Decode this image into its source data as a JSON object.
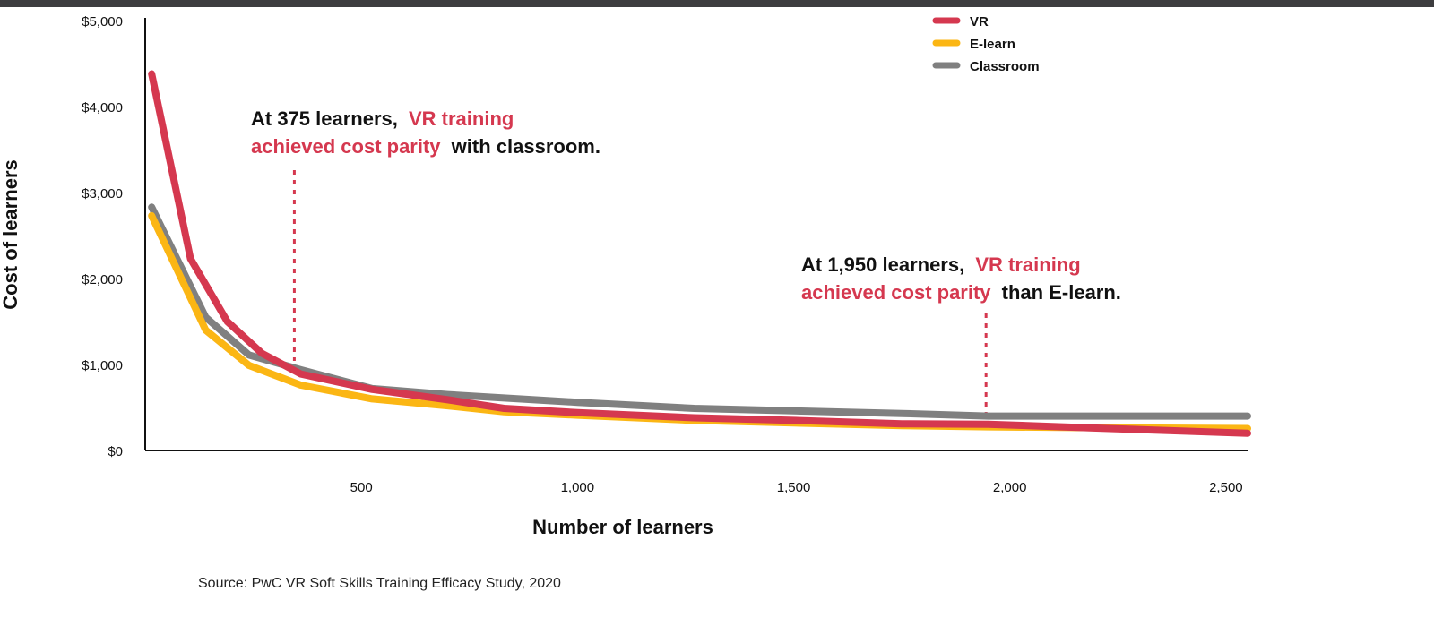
{
  "chart_data": {
    "type": "line",
    "title": "",
    "xlabel": "Number of learners",
    "ylabel": "Cost of learners",
    "xlim": [
      0,
      2550
    ],
    "ylim": [
      0,
      5000
    ],
    "x_ticks": [
      500,
      1000,
      1500,
      2000,
      2500
    ],
    "x_tick_labels": [
      "500",
      "1,000",
      "1,500",
      "2,000",
      "2,500"
    ],
    "y_ticks": [
      0,
      1000,
      2000,
      3000,
      4000,
      5000
    ],
    "y_tick_labels": [
      "$0",
      "$1,000",
      "$2,000",
      "$3,000",
      "$4,000",
      "$5,000"
    ],
    "legend": {
      "position": "top-right"
    },
    "series": [
      {
        "name": "VR",
        "color": "#d5384f",
        "points": [
          [
            15,
            4380
          ],
          [
            105,
            2230
          ],
          [
            190,
            1500
          ],
          [
            270,
            1130
          ],
          [
            360,
            890
          ],
          [
            525,
            710
          ],
          [
            700,
            590
          ],
          [
            830,
            490
          ],
          [
            1000,
            440
          ],
          [
            1270,
            380
          ],
          [
            1500,
            350
          ],
          [
            1750,
            310
          ],
          [
            1950,
            305
          ],
          [
            2200,
            260
          ],
          [
            2550,
            200
          ]
        ]
      },
      {
        "name": "E-learn",
        "color": "#fbb614",
        "points": [
          [
            15,
            2730
          ],
          [
            140,
            1400
          ],
          [
            240,
            990
          ],
          [
            360,
            760
          ],
          [
            525,
            600
          ],
          [
            700,
            520
          ],
          [
            830,
            450
          ],
          [
            1000,
            410
          ],
          [
            1270,
            350
          ],
          [
            1500,
            320
          ],
          [
            1750,
            290
          ],
          [
            1950,
            275
          ],
          [
            2200,
            265
          ],
          [
            2550,
            255
          ]
        ]
      },
      {
        "name": "Classroom",
        "color": "#808080",
        "points": [
          [
            15,
            2830
          ],
          [
            140,
            1550
          ],
          [
            240,
            1110
          ],
          [
            360,
            940
          ],
          [
            525,
            720
          ],
          [
            700,
            650
          ],
          [
            830,
            610
          ],
          [
            1000,
            560
          ],
          [
            1270,
            490
          ],
          [
            1500,
            460
          ],
          [
            1750,
            430
          ],
          [
            1950,
            400
          ],
          [
            2200,
            400
          ],
          [
            2550,
            400
          ]
        ]
      }
    ],
    "annotations": [
      {
        "x": 345,
        "line1_dark": "At 375 learners,",
        "line1_highlight": "VR training",
        "line2_highlight": "achieved cost parity",
        "line2_dark": "with classroom."
      },
      {
        "x": 1945,
        "line1_dark": "At 1,950 learners,",
        "line1_highlight": "VR training",
        "line2_highlight": "achieved cost parity",
        "line2_dark": "than E-learn."
      }
    ],
    "source": "Source: PwC VR Soft Skills Training Efficacy Study, 2020"
  }
}
